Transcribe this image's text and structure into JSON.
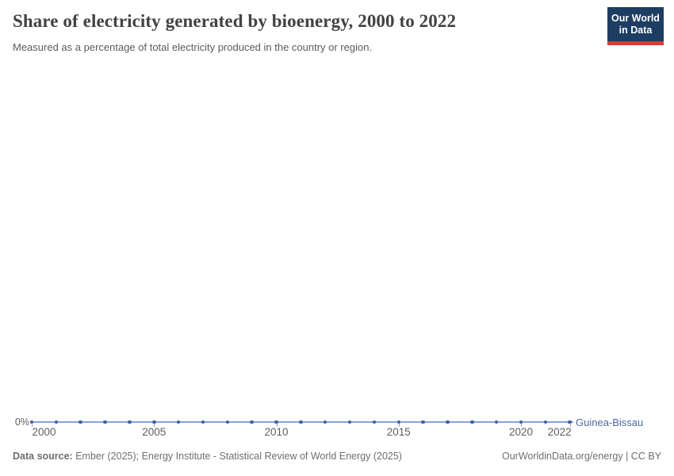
{
  "header": {
    "title": "Share of electricity generated by bioenergy, 2000 to 2022",
    "subtitle": "Measured as a percentage of total electricity produced in the country or region.",
    "logo": {
      "line1": "Our World",
      "line2": "in Data"
    }
  },
  "chart_data": {
    "type": "line",
    "title": "Share of electricity generated by bioenergy, 2000 to 2022",
    "subtitle": "Measured as a percentage of total electricity produced in the country or region.",
    "x": [
      2000,
      2001,
      2002,
      2003,
      2004,
      2005,
      2006,
      2007,
      2008,
      2009,
      2010,
      2011,
      2012,
      2013,
      2014,
      2015,
      2016,
      2017,
      2018,
      2019,
      2020,
      2021,
      2022
    ],
    "series": [
      {
        "name": "Guinea-Bissau",
        "unit": "%",
        "values": [
          0,
          0,
          0,
          0,
          0,
          0,
          0,
          0,
          0,
          0,
          0,
          0,
          0,
          0,
          0,
          0,
          0,
          0,
          0,
          0,
          0,
          0,
          0
        ]
      }
    ],
    "xlim": [
      2000,
      2022
    ],
    "ylim": [
      0,
      0
    ],
    "x_axis_ticks": [
      2000,
      2005,
      2010,
      2015,
      2020,
      2022
    ],
    "y_axis_ticks": [
      "0%"
    ],
    "grid": false,
    "legend_position": "end-of-line",
    "markers": "circle-every-year"
  },
  "footer": {
    "source_label": "Data source:",
    "source_text": " Ember (2025); Energy Institute - Statistical Review of World Energy (2025)",
    "right_text": "OurWorldinData.org/energy | CC BY"
  },
  "colors": {
    "series_line": "#8aa3d2",
    "series_dot": "#3d61a2",
    "series_text": "#4c6a9c",
    "logo_navy": "#1d3d63",
    "logo_red": "#d73c34",
    "title_text": "#424242",
    "axis_text": "#5e5e5e",
    "footer_text": "#6e6e6e"
  }
}
